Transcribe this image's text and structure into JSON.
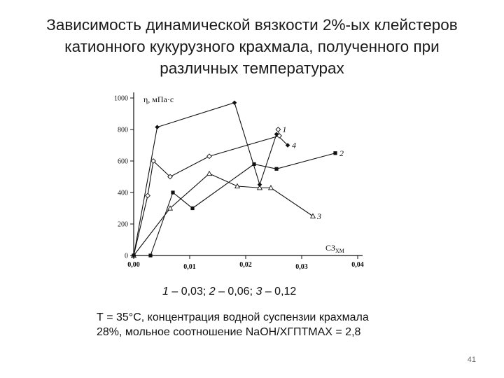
{
  "title_lines": [
    "Зависимость динамической вязкости 2%-ых клейстеров",
    "катионного кукурузного крахмала, полученного при",
    "различных температурах"
  ],
  "chart_data": {
    "type": "line",
    "ylabel": "η, мПа·с",
    "xlabel": "СЗ",
    "xlabel_sub": "ХМ",
    "xlim": [
      0,
      0.04
    ],
    "ylim": [
      0,
      1000
    ],
    "x_ticks": [
      "0,00",
      "0,01",
      "0,02",
      "0,03",
      "0,04"
    ],
    "y_ticks": [
      "0",
      "200",
      "400",
      "600",
      "800",
      "1000"
    ],
    "grid": false,
    "series": [
      {
        "name": "1",
        "marker": "open-diamond",
        "points": [
          [
            0,
            0
          ],
          [
            0.0025,
            380
          ],
          [
            0.0035,
            600
          ],
          [
            0.0065,
            500
          ],
          [
            0.0135,
            630
          ],
          [
            0.026,
            760
          ],
          [
            0.0258,
            800
          ]
        ]
      },
      {
        "name": "2",
        "marker": "square",
        "points": [
          [
            0,
            0
          ],
          [
            0.003,
            0
          ],
          [
            0.007,
            400
          ],
          [
            0.0105,
            300
          ],
          [
            0.0215,
            580
          ],
          [
            0.0255,
            550
          ],
          [
            0.036,
            650
          ]
        ]
      },
      {
        "name": "3",
        "marker": "open-triangle",
        "points": [
          [
            0,
            0
          ],
          [
            0.0065,
            300
          ],
          [
            0.0135,
            520
          ],
          [
            0.0185,
            440
          ],
          [
            0.0225,
            430
          ],
          [
            0.0245,
            430
          ],
          [
            0.032,
            250
          ]
        ]
      },
      {
        "name": "4",
        "marker": "filled-diamond",
        "points": [
          [
            0,
            0
          ],
          [
            0.0042,
            815
          ],
          [
            0.018,
            970
          ],
          [
            0.0225,
            450
          ],
          [
            0.0255,
            770
          ],
          [
            0.0275,
            700
          ]
        ]
      }
    ]
  },
  "legend_items": [
    {
      "num": "1",
      "text": " – 0,03; "
    },
    {
      "num": "2",
      "text": " – 0,06; "
    },
    {
      "num": "3",
      "text": " – 0,12"
    }
  ],
  "note_lines": [
    "Т = 35°С, концентрация водной суспензии крахмала",
    "28%, мольное соотношение NaOH/ХГПТМАХ = 2,8"
  ],
  "page_number": "41"
}
